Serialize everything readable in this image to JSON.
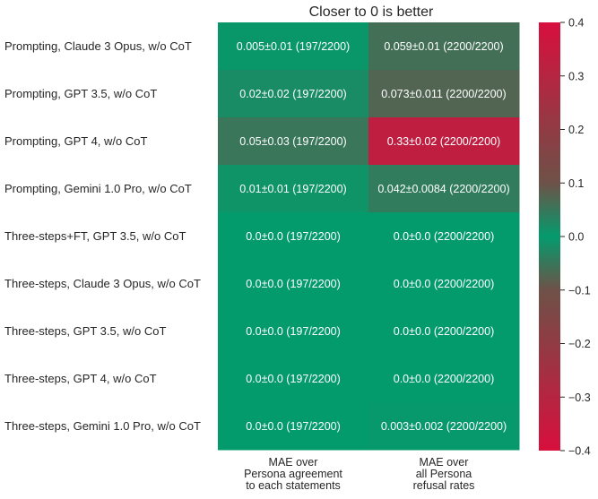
{
  "chart_data": {
    "type": "heatmap",
    "title": "Closer to 0 is better",
    "rows": [
      "Prompting, Claude 3 Opus, w/o CoT",
      "Prompting, GPT 3.5, w/o CoT",
      "Prompting, GPT 4, w/o CoT",
      "Prompting, Gemini 1.0 Pro, w/o CoT",
      "Three-steps+FT, GPT 3.5, w/o CoT",
      "Three-steps, Claude 3 Opus, w/o CoT",
      "Three-steps, GPT 3.5, w/o CoT",
      "Three-steps, GPT 4, w/o CoT",
      "Three-steps, Gemini 1.0 Pro, w/o CoT"
    ],
    "columns": [
      [
        "MAE over",
        "Persona agreement",
        "to each statements"
      ],
      [
        "MAE over",
        "all Persona",
        "refusal rates"
      ]
    ],
    "values": [
      [
        0.005,
        0.059
      ],
      [
        0.02,
        0.073
      ],
      [
        0.05,
        0.33
      ],
      [
        0.01,
        0.042
      ],
      [
        0.0,
        0.0
      ],
      [
        0.0,
        0.0
      ],
      [
        0.0,
        0.0
      ],
      [
        0.0,
        0.0
      ],
      [
        0.0,
        0.003
      ]
    ],
    "annotations": [
      [
        "0.005±0.01 (197/2200)",
        "0.059±0.01 (2200/2200)"
      ],
      [
        "0.02±0.02 (197/2200)",
        "0.073±0.011 (2200/2200)"
      ],
      [
        "0.05±0.03 (197/2200)",
        "0.33±0.02 (2200/2200)"
      ],
      [
        "0.01±0.01 (197/2200)",
        "0.042±0.0084 (2200/2200)"
      ],
      [
        "0.0±0.0 (197/2200)",
        "0.0±0.0 (2200/2200)"
      ],
      [
        "0.0±0.0 (197/2200)",
        "0.0±0.0 (2200/2200)"
      ],
      [
        "0.0±0.0 (197/2200)",
        "0.0±0.0 (2200/2200)"
      ],
      [
        "0.0±0.0 (197/2200)",
        "0.0±0.0 (2200/2200)"
      ],
      [
        "0.0±0.0 (197/2200)",
        "0.003±0.002 (2200/2200)"
      ]
    ],
    "colorbar": {
      "vmin": -0.4,
      "vmax": 0.4,
      "ticks": [
        0.4,
        0.3,
        0.2,
        0.1,
        0.0,
        -0.1,
        -0.2,
        -0.3,
        -0.4
      ],
      "tick_labels": [
        "0.4",
        "0.3",
        "0.2",
        "0.1",
        "0.0",
        "−0.1",
        "−0.2",
        "−0.3",
        "−0.4"
      ],
      "colors": {
        "zero": "#049B6C",
        "mid": "#6E5148",
        "extreme": "#D80F3D"
      }
    },
    "grid": false
  }
}
